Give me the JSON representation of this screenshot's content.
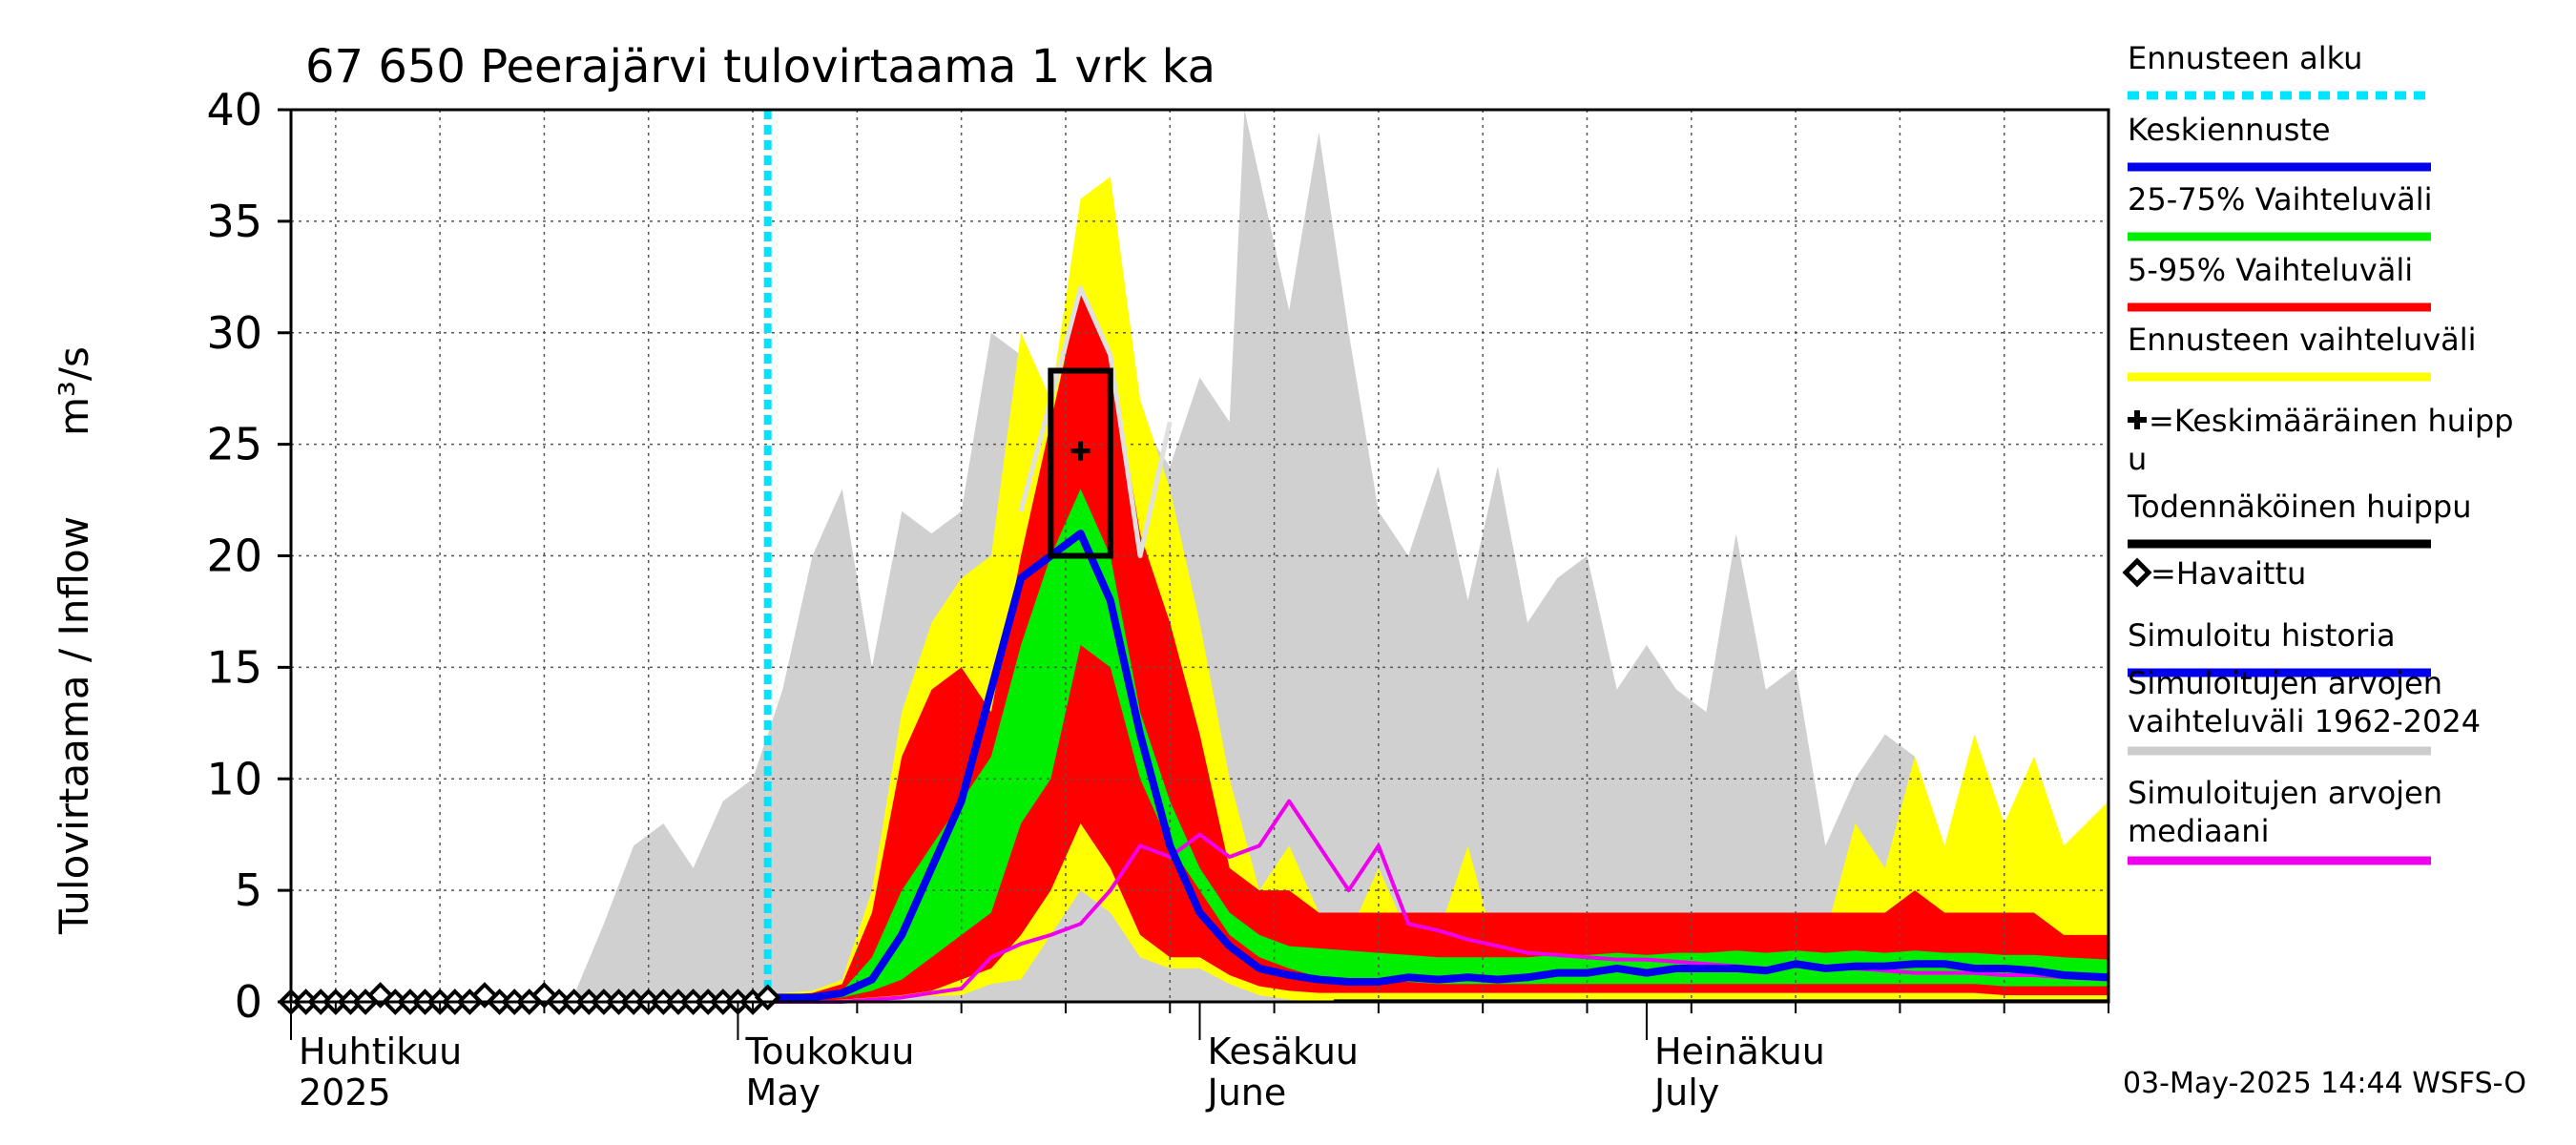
{
  "chart_data": {
    "type": "area",
    "title": "67 650 Peerajärvi tulovirtaama 1 vrk ka",
    "ylabel_left": "Tulovirtaama / Inflow",
    "ylabel_unit": "m³/s",
    "ylim": [
      0,
      40
    ],
    "yticks": [
      0,
      5,
      10,
      15,
      20,
      25,
      30,
      35,
      40
    ],
    "x_range_days": [
      0,
      122
    ],
    "forecast_start_day": 32,
    "month_labels": [
      {
        "fi": "Huhtikuu",
        "en": "2025",
        "day": 0
      },
      {
        "fi": "Toukokuu",
        "en": "May",
        "day": 30
      },
      {
        "fi": "Kesäkuu",
        "en": "June",
        "day": 61
      },
      {
        "fi": "Heinäkuu",
        "en": "July",
        "day": 91
      }
    ],
    "footer": "03-May-2025 14:44 WSFS-O",
    "legend": [
      {
        "label": "Ennusteen alku",
        "color": "#00e5ff",
        "style": "dotted"
      },
      {
        "label": "Keskiennuste",
        "color": "#0000ee",
        "style": "line"
      },
      {
        "label": "25-75% Vaihteluväli",
        "color": "#00ee00",
        "style": "line"
      },
      {
        "label": "5-95% Vaihteluväli",
        "color": "#ff0000",
        "style": "line"
      },
      {
        "label": "Ennusteen vaihteluväli",
        "color": "#ffff00",
        "style": "line"
      },
      {
        "label": "+=Keskimääräinen huipp u",
        "color": "#000000",
        "style": "marker"
      },
      {
        "label": "Todennäköinen huippu",
        "color": "#000000",
        "style": "line"
      },
      {
        "label": "=Havaittu",
        "color": "#000000",
        "style": "diamond"
      },
      {
        "label": "Simuloitu historia",
        "color": "#0000ee",
        "style": "line"
      },
      {
        "label": "Simuloitujen arvojen vaihteluväli 1962-2024",
        "color": "#cccccc",
        "style": "line"
      },
      {
        "label": "Simuloitujen arvojen mediaani",
        "color": "#ee00ee",
        "style": "line"
      }
    ],
    "series": [
      {
        "name": "Simuloitujen arvojen vaihteluväli 1962-2024 (max)",
        "x": [
          0,
          19,
          21,
          23,
          25,
          27,
          29,
          31,
          33,
          35,
          37,
          39,
          41,
          43,
          45,
          47,
          49,
          51,
          53,
          55,
          57,
          59,
          61,
          63,
          64,
          65,
          67,
          69,
          71,
          73,
          75,
          77,
          79,
          81,
          83,
          85,
          87,
          89,
          91,
          93,
          95,
          97,
          99,
          101,
          103,
          105,
          107,
          109,
          111,
          113,
          115,
          117,
          119,
          122
        ],
        "values": [
          0,
          0.3,
          3.5,
          7,
          8,
          6,
          9,
          10,
          14,
          20,
          23,
          15,
          22,
          21,
          22,
          30,
          29,
          27,
          24,
          32,
          26,
          24,
          28,
          26,
          40,
          37,
          31,
          39,
          30,
          22,
          20,
          24,
          18,
          24,
          17,
          19,
          20,
          14,
          16,
          14,
          13,
          21,
          14,
          15,
          7,
          10,
          12,
          11,
          6,
          6,
          6,
          7,
          4,
          3
        ]
      },
      {
        "name": "Ennusteen vaihteluväli (max)",
        "x": [
          32,
          33,
          35,
          37,
          39,
          41,
          43,
          45,
          47,
          49,
          51,
          53,
          55,
          57,
          59,
          61,
          63,
          65,
          67,
          69,
          71,
          73,
          75,
          77,
          79,
          81,
          83,
          85,
          87,
          89,
          91,
          93,
          95,
          97,
          99,
          101,
          103,
          105,
          107,
          109,
          111,
          113,
          115,
          117,
          119,
          122
        ],
        "values": [
          0.3,
          0.4,
          0.5,
          1,
          5,
          13,
          17,
          19,
          20,
          30,
          27,
          36,
          37,
          27,
          23,
          17,
          10,
          5,
          7,
          4,
          3,
          6,
          3,
          3,
          7,
          2,
          3,
          2,
          3,
          2,
          4,
          3,
          4,
          3,
          4,
          2,
          3,
          8,
          6,
          11,
          7,
          12,
          8,
          11,
          7,
          9
        ]
      },
      {
        "name": "5-95% Vaihteluväli (upper)",
        "x": [
          32,
          33,
          35,
          37,
          39,
          41,
          43,
          45,
          47,
          49,
          51,
          53,
          55,
          57,
          59,
          61,
          63,
          65,
          67,
          69,
          71,
          73,
          75,
          77,
          79,
          81,
          83,
          85,
          87,
          89,
          91,
          93,
          95,
          97,
          99,
          101,
          103,
          105,
          107,
          109,
          111,
          113,
          115,
          117,
          119,
          122
        ],
        "values": [
          0.2,
          0.3,
          0.4,
          0.8,
          4,
          11,
          14,
          15,
          13,
          20,
          26,
          32,
          29,
          21,
          17,
          12,
          6,
          5,
          5,
          4,
          4,
          4,
          4,
          4,
          4,
          4,
          4,
          4,
          4,
          4,
          4,
          4,
          4,
          4,
          4,
          4,
          4,
          4,
          4,
          5,
          4,
          4,
          4,
          4,
          3,
          3
        ]
      },
      {
        "name": "25-75% Vaihteluväli (upper)",
        "x": [
          32,
          33,
          35,
          37,
          39,
          41,
          43,
          45,
          47,
          49,
          51,
          53,
          55,
          57,
          59,
          61,
          63,
          65,
          67,
          69,
          71,
          73,
          75,
          77,
          79,
          81,
          83,
          85,
          87,
          89,
          91,
          93,
          95,
          97,
          99,
          101,
          103,
          105,
          107,
          109,
          111,
          113,
          115,
          117,
          119,
          122
        ],
        "values": [
          0.1,
          0.2,
          0.3,
          0.5,
          2,
          5,
          7,
          9,
          11,
          16,
          20,
          23,
          20,
          13,
          9,
          6,
          4,
          3,
          2.5,
          2.4,
          2.3,
          2.2,
          2.1,
          2,
          2,
          2,
          2,
          2.1,
          2.1,
          2.2,
          2.1,
          2.2,
          2.2,
          2.3,
          2.2,
          2.3,
          2.2,
          2.3,
          2.2,
          2.3,
          2.2,
          2.2,
          2.1,
          2.1,
          2,
          1.9
        ]
      },
      {
        "name": "25-75% Vaihteluväli (lower)",
        "x": [
          32,
          33,
          35,
          37,
          39,
          41,
          43,
          45,
          47,
          49,
          51,
          53,
          55,
          57,
          59,
          61,
          63,
          65,
          67,
          69,
          71,
          73,
          75,
          77,
          79,
          81,
          83,
          85,
          87,
          89,
          91,
          93,
          95,
          97,
          99,
          101,
          103,
          105,
          107,
          109,
          111,
          113,
          115,
          117,
          119,
          122
        ],
        "values": [
          0.05,
          0.1,
          0.1,
          0.2,
          0.5,
          1,
          2,
          3,
          4,
          8,
          10,
          16,
          15,
          10,
          7,
          5,
          3,
          2,
          1.5,
          1.1,
          1,
          0.9,
          0.9,
          0.8,
          0.8,
          0.8,
          0.8,
          0.8,
          0.8,
          0.8,
          0.8,
          0.8,
          0.8,
          0.8,
          0.8,
          0.8,
          0.8,
          0.8,
          0.8,
          0.8,
          0.8,
          0.8,
          0.7,
          0.7,
          0.7,
          0.7
        ]
      },
      {
        "name": "5-95% Vaihteluväli (lower)",
        "x": [
          32,
          33,
          35,
          37,
          39,
          41,
          43,
          45,
          47,
          49,
          51,
          53,
          55,
          57,
          59,
          61,
          63,
          65,
          67,
          69,
          71,
          73,
          75,
          77,
          79,
          81,
          83,
          85,
          87,
          89,
          91,
          93,
          95,
          97,
          99,
          101,
          103,
          105,
          107,
          109,
          111,
          113,
          115,
          117,
          119,
          122
        ],
        "values": [
          0,
          0.05,
          0.05,
          0.1,
          0.2,
          0.3,
          0.5,
          1,
          1.5,
          3,
          5,
          8,
          6,
          3,
          2,
          2,
          1.2,
          0.7,
          0.5,
          0.4,
          0.4,
          0.4,
          0.4,
          0.4,
          0.4,
          0.4,
          0.4,
          0.4,
          0.4,
          0.4,
          0.4,
          0.4,
          0.4,
          0.4,
          0.4,
          0.4,
          0.4,
          0.4,
          0.4,
          0.4,
          0.4,
          0.4,
          0.3,
          0.3,
          0.3,
          0.3
        ]
      },
      {
        "name": "Ennusteen vaihteluväli (min)",
        "x": [
          32,
          45,
          47,
          49,
          51,
          53,
          55,
          57,
          59,
          61,
          63,
          65,
          67,
          69,
          71,
          122
        ],
        "values": [
          0,
          0.3,
          0.8,
          1,
          3,
          5,
          4,
          2,
          1.5,
          1.5,
          0.8,
          0.3,
          0.1,
          0,
          0,
          0
        ]
      },
      {
        "name": "Keskiennuste",
        "x": [
          32,
          33,
          35,
          37,
          39,
          41,
          43,
          45,
          47,
          49,
          51,
          53,
          55,
          57,
          59,
          61,
          63,
          65,
          67,
          69,
          71,
          73,
          75,
          77,
          79,
          81,
          83,
          85,
          87,
          89,
          91,
          93,
          95,
          97,
          99,
          101,
          103,
          105,
          107,
          109,
          111,
          113,
          115,
          117,
          119,
          122
        ],
        "values": [
          0.2,
          0.2,
          0.2,
          0.4,
          1,
          3,
          6,
          9,
          14,
          19,
          20,
          21,
          18,
          12,
          7,
          4,
          2.5,
          1.5,
          1.2,
          1,
          0.9,
          0.9,
          1.1,
          1,
          1.1,
          1,
          1.1,
          1.3,
          1.3,
          1.5,
          1.3,
          1.5,
          1.5,
          1.5,
          1.4,
          1.7,
          1.5,
          1.6,
          1.6,
          1.7,
          1.7,
          1.5,
          1.5,
          1.4,
          1.2,
          1.1
        ]
      },
      {
        "name": "Simuloitujen arvojen mediaani",
        "x": [
          32,
          37,
          39,
          41,
          43,
          45,
          47,
          49,
          51,
          53,
          55,
          57,
          59,
          61,
          63,
          65,
          67,
          69,
          71,
          73,
          75,
          77,
          79,
          81,
          83,
          85,
          87,
          89,
          91,
          93,
          95,
          97,
          99,
          101,
          103,
          105,
          107,
          109,
          111,
          113,
          115,
          117,
          119,
          122
        ],
        "values": [
          0,
          0,
          0.1,
          0.2,
          0.4,
          0.6,
          2,
          2.6,
          3,
          3.5,
          5,
          7,
          6.5,
          7.5,
          6.5,
          7,
          9,
          7,
          5,
          7,
          3.5,
          3.2,
          2.8,
          2.5,
          2.2,
          2.1,
          2,
          1.9,
          1.9,
          1.8,
          1.7,
          1.6,
          1.5,
          1.6,
          1.5,
          1.5,
          1.4,
          1.3,
          1.3,
          1.3,
          1.2,
          1.2,
          1.1,
          1
        ]
      },
      {
        "name": "Keskiennuste (median light)",
        "x": [
          49,
          51,
          53,
          55,
          57,
          59
        ],
        "values": [
          22,
          27,
          32,
          29,
          20,
          26
        ]
      },
      {
        "name": "Havaittu",
        "x": [
          0,
          1,
          2,
          3,
          4,
          5,
          6,
          7,
          8,
          9,
          10,
          11,
          12,
          13,
          14,
          15,
          16,
          17,
          18,
          19,
          20,
          21,
          22,
          23,
          24,
          25,
          26,
          27,
          28,
          29,
          30,
          31,
          32
        ],
        "values": [
          0,
          0,
          0,
          0,
          0,
          0,
          0.3,
          0,
          0,
          0,
          0,
          0,
          0,
          0.3,
          0,
          0,
          0,
          0.3,
          0,
          0,
          0,
          0,
          0,
          0,
          0,
          0,
          0,
          0,
          0,
          0,
          0,
          0,
          0.2
        ]
      }
    ],
    "peak_box": {
      "x_start": 51,
      "x_end": 55,
      "y_low": 20,
      "y_high": 28.3
    },
    "mean_peak": {
      "x": 53,
      "y": 24.7
    }
  }
}
